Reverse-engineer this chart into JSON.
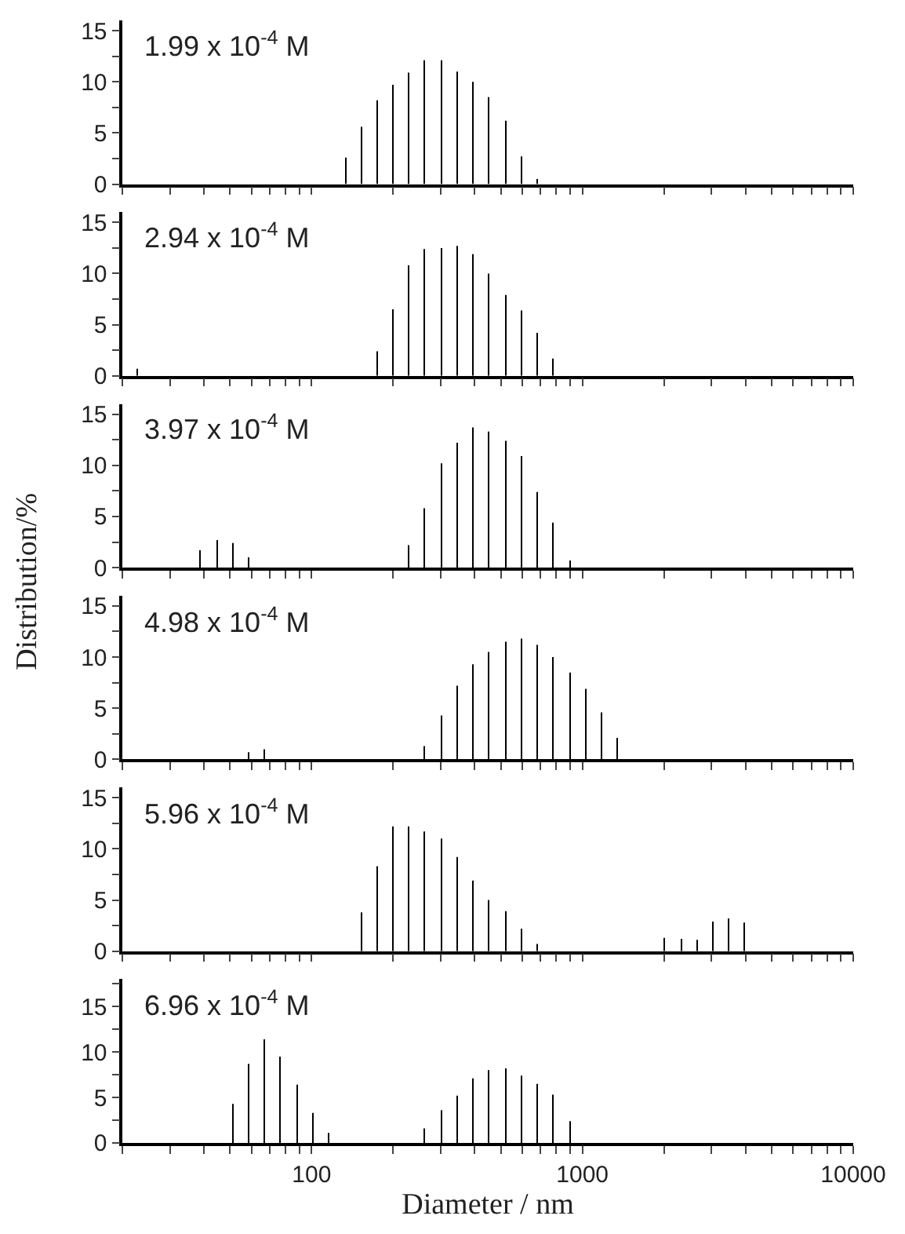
{
  "chart_data": [
    {
      "type": "bar",
      "annotations": [
        "1.99 x 10$^{-4}$ M"
      ],
      "color": "#000000",
      "log": "x",
      "tick_labels": "y",
      "xlim": [
        20,
        10000
      ],
      "ylim": [
        0,
        16
      ],
      "xticks": [
        {
          "value": 20,
          "label": null
        },
        {
          "value": 30,
          "label": null
        },
        {
          "value": 40,
          "label": null
        },
        {
          "value": 50,
          "label": null
        },
        {
          "value": 60,
          "label": null
        },
        {
          "value": 70,
          "label": null
        },
        {
          "value": 80,
          "label": null
        },
        {
          "value": 90,
          "label": null
        },
        {
          "value": 100,
          "label": null
        },
        {
          "value": 200,
          "label": null
        },
        {
          "value": 300,
          "label": null
        },
        {
          "value": 400,
          "label": null
        },
        {
          "value": 500,
          "label": null
        },
        {
          "value": 600,
          "label": null
        },
        {
          "value": 700,
          "label": null
        },
        {
          "value": 800,
          "label": null
        },
        {
          "value": 900,
          "label": null
        },
        {
          "value": 1000,
          "label": null
        },
        {
          "value": 2000,
          "label": null
        },
        {
          "value": 3000,
          "label": null
        },
        {
          "value": 4000,
          "label": null
        },
        {
          "value": 5000,
          "label": null
        },
        {
          "value": 6000,
          "label": null
        },
        {
          "value": 7000,
          "label": null
        },
        {
          "value": 8000,
          "label": null
        },
        {
          "value": 9000,
          "label": null
        },
        {
          "value": 10000,
          "label": null
        }
      ],
      "yticks": [
        0,
        {
          "value": 2.5,
          "label": null
        },
        5,
        {
          "value": 7.5,
          "label": null
        },
        10,
        {
          "value": 12.5,
          "label": null
        },
        15
      ],
      "x": [
        133,
        152,
        174,
        200,
        229,
        262,
        301,
        345,
        395,
        452,
        518,
        594,
        681
      ],
      "values": [
        2.6,
        5.6,
        8.2,
        9.7,
        10.9,
        12.1,
        12.1,
        11.0,
        10.0,
        8.5,
        6.2,
        2.7,
        0.5
      ]
    },
    {
      "type": "bar",
      "annotations": [
        "2.94 x 10$^{-4}$ M"
      ],
      "color": "#000000",
      "log": "x",
      "tick_labels": "y",
      "xlim": [
        20,
        10000
      ],
      "ylim": [
        0,
        16
      ],
      "xticks": [
        {
          "value": 20,
          "label": null
        },
        {
          "value": 30,
          "label": null
        },
        {
          "value": 40,
          "label": null
        },
        {
          "value": 50,
          "label": null
        },
        {
          "value": 60,
          "label": null
        },
        {
          "value": 70,
          "label": null
        },
        {
          "value": 80,
          "label": null
        },
        {
          "value": 90,
          "label": null
        },
        {
          "value": 100,
          "label": null
        },
        {
          "value": 200,
          "label": null
        },
        {
          "value": 300,
          "label": null
        },
        {
          "value": 400,
          "label": null
        },
        {
          "value": 500,
          "label": null
        },
        {
          "value": 600,
          "label": null
        },
        {
          "value": 700,
          "label": null
        },
        {
          "value": 800,
          "label": null
        },
        {
          "value": 900,
          "label": null
        },
        {
          "value": 1000,
          "label": null
        },
        {
          "value": 2000,
          "label": null
        },
        {
          "value": 3000,
          "label": null
        },
        {
          "value": 4000,
          "label": null
        },
        {
          "value": 5000,
          "label": null
        },
        {
          "value": 6000,
          "label": null
        },
        {
          "value": 7000,
          "label": null
        },
        {
          "value": 8000,
          "label": null
        },
        {
          "value": 9000,
          "label": null
        },
        {
          "value": 10000,
          "label": null
        }
      ],
      "yticks": [
        0,
        {
          "value": 2.5,
          "label": null
        },
        5,
        {
          "value": 7.5,
          "label": null
        },
        10,
        {
          "value": 12.5,
          "label": null
        },
        15
      ],
      "x": [
        22.6,
        174,
        200,
        229,
        262,
        301,
        345,
        395,
        452,
        518,
        594,
        681,
        781
      ],
      "values": [
        0.7,
        2.4,
        6.5,
        10.8,
        12.4,
        12.5,
        12.7,
        11.9,
        10.0,
        7.9,
        6.4,
        4.2,
        1.7
      ]
    },
    {
      "type": "bar",
      "annotations": [
        "3.97 x 10$^{-4}$ M"
      ],
      "color": "#000000",
      "log": "x",
      "tick_labels": "y",
      "xlim": [
        20,
        10000
      ],
      "ylim": [
        0,
        16
      ],
      "ylabel": "Distribution/%",
      "xticks": [
        {
          "value": 20,
          "label": null
        },
        {
          "value": 30,
          "label": null
        },
        {
          "value": 40,
          "label": null
        },
        {
          "value": 50,
          "label": null
        },
        {
          "value": 60,
          "label": null
        },
        {
          "value": 70,
          "label": null
        },
        {
          "value": 80,
          "label": null
        },
        {
          "value": 90,
          "label": null
        },
        {
          "value": 100,
          "label": null
        },
        {
          "value": 200,
          "label": null
        },
        {
          "value": 300,
          "label": null
        },
        {
          "value": 400,
          "label": null
        },
        {
          "value": 500,
          "label": null
        },
        {
          "value": 600,
          "label": null
        },
        {
          "value": 700,
          "label": null
        },
        {
          "value": 800,
          "label": null
        },
        {
          "value": 900,
          "label": null
        },
        {
          "value": 1000,
          "label": null
        },
        {
          "value": 2000,
          "label": null
        },
        {
          "value": 3000,
          "label": null
        },
        {
          "value": 4000,
          "label": null
        },
        {
          "value": 5000,
          "label": null
        },
        {
          "value": 6000,
          "label": null
        },
        {
          "value": 7000,
          "label": null
        },
        {
          "value": 8000,
          "label": null
        },
        {
          "value": 9000,
          "label": null
        },
        {
          "value": 10000,
          "label": null
        }
      ],
      "yticks": [
        0,
        {
          "value": 2.5,
          "label": null
        },
        5,
        {
          "value": 7.5,
          "label": null
        },
        10,
        {
          "value": 12.5,
          "label": null
        },
        15
      ],
      "x": [
        38.9,
        44.6,
        51.1,
        58.5,
        229,
        262,
        301,
        345,
        395,
        452,
        518,
        594,
        681,
        781,
        895
      ],
      "values": [
        1.7,
        2.7,
        2.4,
        1.0,
        2.2,
        5.8,
        10.2,
        12.2,
        13.7,
        13.3,
        12.4,
        10.9,
        7.4,
        4.4,
        0.7
      ]
    },
    {
      "type": "bar",
      "annotations": [
        "4.98 x 10$^{-4}$ M"
      ],
      "color": "#000000",
      "log": "x",
      "tick_labels": "y",
      "xlim": [
        20,
        10000
      ],
      "ylim": [
        0,
        16
      ],
      "xticks": [
        {
          "value": 20,
          "label": null
        },
        {
          "value": 30,
          "label": null
        },
        {
          "value": 40,
          "label": null
        },
        {
          "value": 50,
          "label": null
        },
        {
          "value": 60,
          "label": null
        },
        {
          "value": 70,
          "label": null
        },
        {
          "value": 80,
          "label": null
        },
        {
          "value": 90,
          "label": null
        },
        {
          "value": 100,
          "label": null
        },
        {
          "value": 200,
          "label": null
        },
        {
          "value": 300,
          "label": null
        },
        {
          "value": 400,
          "label": null
        },
        {
          "value": 500,
          "label": null
        },
        {
          "value": 600,
          "label": null
        },
        {
          "value": 700,
          "label": null
        },
        {
          "value": 800,
          "label": null
        },
        {
          "value": 900,
          "label": null
        },
        {
          "value": 1000,
          "label": null
        },
        {
          "value": 2000,
          "label": null
        },
        {
          "value": 3000,
          "label": null
        },
        {
          "value": 4000,
          "label": null
        },
        {
          "value": 5000,
          "label": null
        },
        {
          "value": 6000,
          "label": null
        },
        {
          "value": 7000,
          "label": null
        },
        {
          "value": 8000,
          "label": null
        },
        {
          "value": 9000,
          "label": null
        },
        {
          "value": 10000,
          "label": null
        }
      ],
      "yticks": [
        0,
        {
          "value": 2.5,
          "label": null
        },
        5,
        {
          "value": 7.5,
          "label": null
        },
        10,
        {
          "value": 12.5,
          "label": null
        },
        15
      ],
      "x": [
        58.5,
        67.1,
        262,
        301,
        345,
        395,
        452,
        518,
        594,
        681,
        781,
        895,
        1026,
        1176,
        1349
      ],
      "values": [
        0.7,
        1.0,
        1.3,
        4.3,
        7.2,
        9.3,
        10.5,
        11.5,
        11.8,
        11.2,
        10.0,
        8.5,
        6.9,
        4.6,
        2.1
      ]
    },
    {
      "type": "bar",
      "annotations": [
        "5.96 x 10$^{-4}$ M"
      ],
      "color": "#000000",
      "log": "x",
      "tick_labels": "y",
      "xlim": [
        20,
        10000
      ],
      "ylim": [
        0,
        16
      ],
      "xticks": [
        {
          "value": 20,
          "label": null
        },
        {
          "value": 30,
          "label": null
        },
        {
          "value": 40,
          "label": null
        },
        {
          "value": 50,
          "label": null
        },
        {
          "value": 60,
          "label": null
        },
        {
          "value": 70,
          "label": null
        },
        {
          "value": 80,
          "label": null
        },
        {
          "value": 90,
          "label": null
        },
        {
          "value": 100,
          "label": null
        },
        {
          "value": 200,
          "label": null
        },
        {
          "value": 300,
          "label": null
        },
        {
          "value": 400,
          "label": null
        },
        {
          "value": 500,
          "label": null
        },
        {
          "value": 600,
          "label": null
        },
        {
          "value": 700,
          "label": null
        },
        {
          "value": 800,
          "label": null
        },
        {
          "value": 900,
          "label": null
        },
        {
          "value": 1000,
          "label": null
        },
        {
          "value": 2000,
          "label": null
        },
        {
          "value": 3000,
          "label": null
        },
        {
          "value": 4000,
          "label": null
        },
        {
          "value": 5000,
          "label": null
        },
        {
          "value": 6000,
          "label": null
        },
        {
          "value": 7000,
          "label": null
        },
        {
          "value": 8000,
          "label": null
        },
        {
          "value": 9000,
          "label": null
        },
        {
          "value": 10000,
          "label": null
        }
      ],
      "yticks": [
        0,
        {
          "value": 2.5,
          "label": null
        },
        5,
        {
          "value": 7.5,
          "label": null
        },
        10,
        {
          "value": 12.5,
          "label": null
        },
        15
      ],
      "x": [
        152,
        174,
        200,
        229,
        262,
        301,
        345,
        395,
        452,
        518,
        594,
        681,
        2014,
        2310,
        2648,
        3035,
        3477,
        3984
      ],
      "values": [
        3.8,
        8.3,
        12.2,
        12.2,
        11.7,
        11.0,
        9.2,
        6.9,
        5.0,
        3.9,
        2.2,
        0.7,
        1.3,
        1.2,
        1.1,
        2.9,
        3.2,
        2.8
      ]
    },
    {
      "type": "bar",
      "annotations": [
        "6.96 x 10$^{-4}$ M"
      ],
      "color": "#000000",
      "log": "x",
      "xlim": [
        20,
        10000
      ],
      "ylim": [
        0,
        18
      ],
      "xlabel": "Diameter / nm",
      "xticks": [
        {
          "value": 20,
          "label": null
        },
        {
          "value": 30,
          "label": null
        },
        {
          "value": 40,
          "label": null
        },
        {
          "value": 50,
          "label": null
        },
        {
          "value": 60,
          "label": null
        },
        {
          "value": 70,
          "label": null
        },
        {
          "value": 80,
          "label": null
        },
        {
          "value": 90,
          "label": null
        },
        {
          "value": 100,
          "label": "100"
        },
        {
          "value": 200,
          "label": null
        },
        {
          "value": 300,
          "label": null
        },
        {
          "value": 400,
          "label": null
        },
        {
          "value": 500,
          "label": null
        },
        {
          "value": 600,
          "label": null
        },
        {
          "value": 700,
          "label": null
        },
        {
          "value": 800,
          "label": null
        },
        {
          "value": 900,
          "label": null
        },
        {
          "value": 1000,
          "label": "1000"
        },
        {
          "value": 2000,
          "label": null
        },
        {
          "value": 3000,
          "label": null
        },
        {
          "value": 4000,
          "label": null
        },
        {
          "value": 5000,
          "label": null
        },
        {
          "value": 6000,
          "label": null
        },
        {
          "value": 7000,
          "label": null
        },
        {
          "value": 8000,
          "label": null
        },
        {
          "value": 9000,
          "label": null
        },
        {
          "value": 10000,
          "label": "10000"
        }
      ],
      "yticks": [
        0,
        {
          "value": 2.5,
          "label": null
        },
        5,
        {
          "value": 7.5,
          "label": null
        },
        10,
        {
          "value": 12.5,
          "label": null
        },
        15,
        {
          "value": 17.5,
          "label": null
        }
      ],
      "x": [
        51.1,
        58.5,
        67.1,
        76.9,
        88.1,
        101,
        115.7,
        262,
        301,
        345,
        395,
        452,
        518,
        594,
        681,
        781,
        895
      ],
      "values": [
        4.3,
        8.7,
        11.4,
        9.5,
        6.4,
        3.3,
        1.1,
        1.6,
        3.6,
        5.2,
        7.1,
        8.0,
        8.2,
        7.4,
        6.5,
        5.3,
        2.4
      ]
    }
  ]
}
